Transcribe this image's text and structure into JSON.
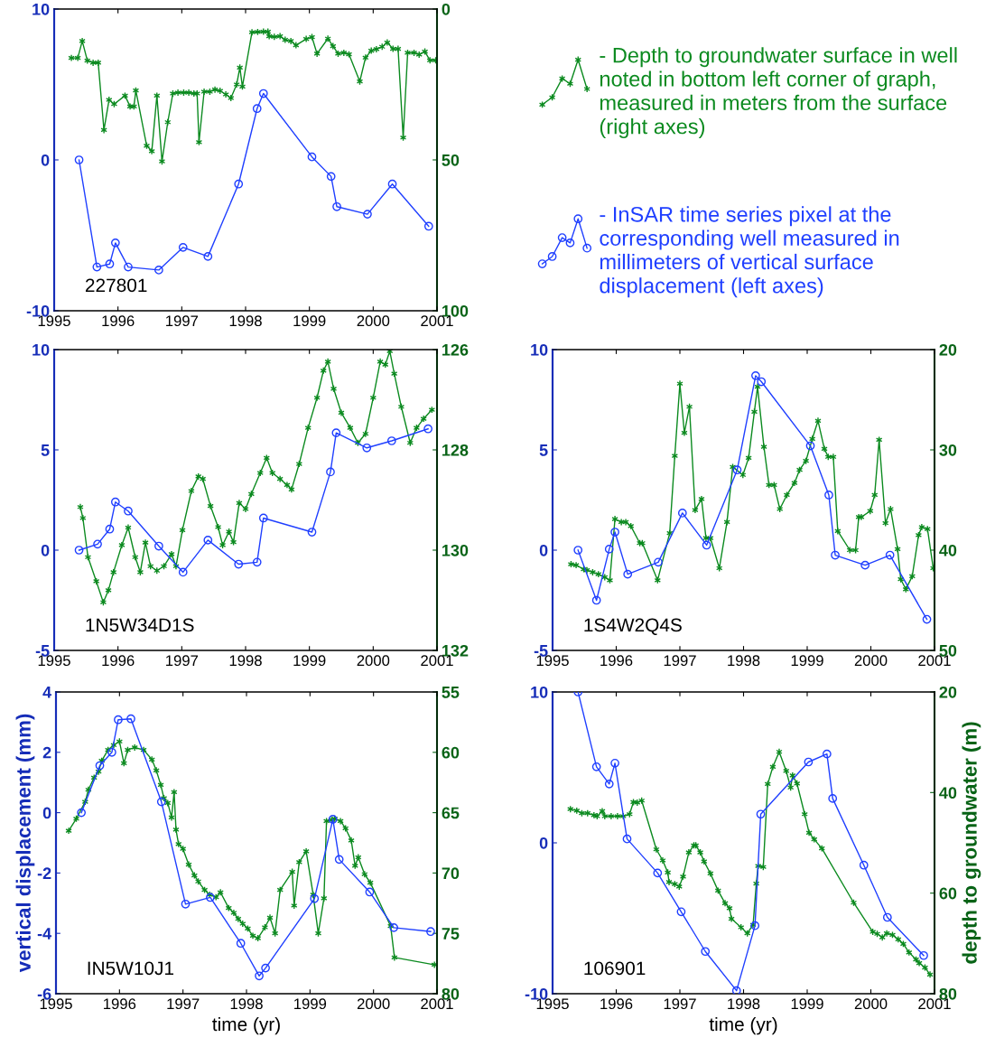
{
  "chart_data": [
    {
      "type": "line",
      "annotations": [
        "227801"
      ],
      "legend": "right",
      "xlim": [
        1995,
        2001
      ],
      "xticks": [
        1995,
        1996,
        1997,
        1998,
        1999,
        2000,
        2001
      ],
      "ylim": [
        -10,
        10
      ],
      "yticks": [
        -10,
        0,
        10
      ],
      "y2lim": [
        100,
        0
      ],
      "y2ticks": [
        0,
        50,
        100
      ],
      "grid": false,
      "series": [
        {
          "name": "- Depth to groundwater surface in well noted in bottom left corner of graph, measured in meters from the surface (right axes)",
          "color": "#0b8a1f",
          "axis": "y2",
          "marker": "cross",
          "x": [
            1995.27,
            1995.37,
            1995.44,
            1995.52,
            1995.61,
            1995.69,
            1995.78,
            1995.86,
            1995.94,
            1996.11,
            1996.19,
            1996.25,
            1996.28,
            1996.45,
            1996.53,
            1996.61,
            1996.69,
            1996.78,
            1996.86,
            1996.94,
            1997.03,
            1997.11,
            1997.19,
            1997.24,
            1997.27,
            1997.35,
            1997.44,
            1997.52,
            1997.6,
            1997.69,
            1997.77,
            1997.86,
            1997.91,
            1997.95,
            1998.1,
            1998.19,
            1998.28,
            1998.35,
            1998.37,
            1998.45,
            1998.54,
            1998.62,
            1998.71,
            1998.79,
            1998.95,
            1999.04,
            1999.12,
            1999.29,
            1999.37,
            1999.45,
            1999.54,
            1999.62,
            1999.79,
            1999.88,
            1999.97,
            2000.05,
            2000.14,
            2000.22,
            2000.31,
            2000.39,
            2000.47,
            2000.54,
            2000.64,
            2000.72,
            2000.81,
            2000.89,
            2000.98
          ],
          "values": [
            16.2,
            16.2,
            10.6,
            17.1,
            17.8,
            17.8,
            40.1,
            30.1,
            31.5,
            28.7,
            32.3,
            32.3,
            27,
            45.3,
            47.1,
            28.7,
            50.5,
            37.5,
            28,
            27.7,
            27.7,
            27.7,
            28,
            28,
            44.1,
            27.4,
            27.4,
            26.7,
            27.1,
            28.3,
            29.5,
            25,
            19.4,
            25.7,
            7.7,
            7.6,
            7.5,
            7.5,
            9,
            9.2,
            9,
            10.2,
            10.6,
            12,
            9.9,
            9.3,
            14.8,
            9.8,
            12.3,
            14.8,
            14.5,
            15,
            24,
            16.1,
            13.8,
            13.3,
            12.5,
            11.1,
            13.2,
            13.2,
            42.6,
            14.5,
            14.5,
            15.1,
            14.1,
            17,
            17
          ]
        },
        {
          "name": "- InSAR time series pixel at the corresponding well measured in millimeters of vertical surface displacement (left axes)",
          "color": "#1f3fff",
          "axis": "y",
          "marker": "circle",
          "x": [
            1995.39,
            1995.67,
            1995.87,
            1995.96,
            1996.16,
            1996.64,
            1997.02,
            1997.41,
            1997.89,
            1998.18,
            1998.28,
            1999.04,
            1999.34,
            1999.43,
            1999.91,
            2000.3,
            2000.87
          ],
          "values": [
            0,
            -7.1,
            -6.9,
            -5.5,
            -7.1,
            -7.3,
            -5.8,
            -6.4,
            -1.6,
            3.4,
            4.4,
            0.2,
            -1.1,
            -3.1,
            -3.6,
            -1.6,
            -4.4
          ]
        }
      ]
    },
    {
      "type": "line",
      "annotations": [
        "1N5W34D1S"
      ],
      "xlim": [
        1995,
        2001
      ],
      "xticks": [
        1995,
        1996,
        1997,
        1998,
        1999,
        2000,
        2001
      ],
      "ylim": [
        -5,
        10
      ],
      "yticks": [
        -5,
        0,
        5,
        10
      ],
      "y2lim": [
        132,
        126
      ],
      "y2ticks": [
        126,
        128,
        130,
        132
      ],
      "grid": false,
      "series": [
        {
          "color": "#0b8a1f",
          "axis": "y2",
          "marker": "cross",
          "x": [
            1995.41,
            1995.45,
            1995.53,
            1995.66,
            1995.77,
            1995.85,
            1995.93,
            1996.06,
            1996.16,
            1996.27,
            1996.35,
            1996.43,
            1996.51,
            1996.61,
            1996.72,
            1996.84,
            1996.91,
            1997.01,
            1997.15,
            1997.26,
            1997.33,
            1997.45,
            1997.57,
            1997.64,
            1997.74,
            1997.81,
            1997.9,
            1998.0,
            1998.09,
            1998.23,
            1998.33,
            1998.42,
            1998.54,
            1998.65,
            1998.72,
            1998.84,
            1998.98,
            1999.12,
            1999.22,
            1999.29,
            1999.38,
            1999.5,
            1999.64,
            1999.76,
            1999.88,
            2000.0,
            2000.11,
            2000.19,
            2000.26,
            2000.33,
            2000.44,
            2000.58,
            2000.68,
            2000.79,
            2000.92
          ],
          "values": [
            129.14,
            129.36,
            130.14,
            130.62,
            131.04,
            130.8,
            130.44,
            129.9,
            129.55,
            130.14,
            130.44,
            129.85,
            130.32,
            130.41,
            130.32,
            130.08,
            130.32,
            129.6,
            128.82,
            128.53,
            128.58,
            129.12,
            129.54,
            129.9,
            129.63,
            129.84,
            129.06,
            129.18,
            128.88,
            128.46,
            128.16,
            128.46,
            128.58,
            128.7,
            128.79,
            128.28,
            127.56,
            126.96,
            126.42,
            126.24,
            126.78,
            127.26,
            127.56,
            127.86,
            127.68,
            126.96,
            126.24,
            126.3,
            126.03,
            126.48,
            127.14,
            127.86,
            127.56,
            127.38,
            127.2
          ]
        },
        {
          "color": "#1f3fff",
          "axis": "y",
          "marker": "circle",
          "x": [
            1995.39,
            1995.68,
            1995.87,
            1995.96,
            1996.16,
            1996.64,
            1997.02,
            1997.41,
            1997.89,
            1998.18,
            1998.28,
            1999.04,
            1999.33,
            1999.42,
            1999.9,
            2000.29,
            2000.86
          ],
          "values": [
            0,
            0.3,
            1.05,
            2.4,
            1.95,
            0.2,
            -1.1,
            0.5,
            -0.7,
            -0.6,
            1.6,
            0.9,
            3.9,
            5.85,
            5.1,
            5.45,
            6.05
          ]
        }
      ]
    },
    {
      "type": "line",
      "annotations": [
        "1S4W2Q4S"
      ],
      "xlim": [
        1995,
        2001
      ],
      "xticks": [
        1995,
        1996,
        1997,
        1998,
        1999,
        2000,
        2001
      ],
      "ylim": [
        -5,
        10
      ],
      "yticks": [
        -5,
        0,
        5,
        10
      ],
      "y2lim": [
        50,
        20
      ],
      "y2ticks": [
        20,
        30,
        40,
        50
      ],
      "grid": false,
      "series": [
        {
          "color": "#0b8a1f",
          "axis": "y2",
          "marker": "cross",
          "x": [
            1995.29,
            1995.37,
            1995.49,
            1995.54,
            1995.63,
            1995.72,
            1995.82,
            1995.9,
            1995.98,
            1996.08,
            1996.15,
            1996.23,
            1996.37,
            1996.41,
            1996.65,
            1996.84,
            1996.92,
            1997.0,
            1997.07,
            1997.15,
            1997.24,
            1997.34,
            1997.41,
            1997.48,
            1997.62,
            1997.74,
            1997.83,
            1997.99,
            1998.08,
            1998.17,
            1998.22,
            1998.32,
            1998.4,
            1998.48,
            1998.57,
            1998.68,
            1998.8,
            1998.88,
            1998.98,
            1999.08,
            1999.17,
            1999.27,
            1999.33,
            1999.41,
            1999.48,
            1999.67,
            1999.76,
            1999.81,
            1999.85,
            1999.99,
            2000.06,
            2000.13,
            2000.23,
            2000.31,
            2000.42,
            2000.47,
            2000.55,
            2000.65,
            2000.75,
            2000.8,
            2000.89,
            2000.98
          ],
          "values": [
            41.4,
            41.5,
            41.9,
            42.0,
            42.2,
            42.4,
            42.7,
            43.0,
            36.9,
            37.2,
            37.2,
            37.6,
            39.3,
            39.3,
            43.0,
            38.3,
            30.6,
            23.4,
            28.3,
            25.7,
            36.0,
            34.9,
            38.8,
            38.8,
            41.8,
            37.2,
            31.7,
            32.5,
            30.8,
            26.2,
            23.7,
            29.7,
            33.5,
            33.5,
            35.9,
            34.5,
            33.3,
            32.0,
            31.1,
            28.9,
            27.1,
            29.9,
            30.7,
            30.7,
            38.1,
            40.0,
            40.0,
            36.7,
            36.7,
            36.1,
            34.5,
            29.0,
            37.3,
            35.9,
            39.9,
            42.9,
            43.9,
            42.6,
            38.5,
            37.7,
            37.9,
            41.8
          ]
        },
        {
          "color": "#1f3fff",
          "axis": "y",
          "marker": "circle",
          "x": [
            1995.4,
            1995.69,
            1995.89,
            1995.98,
            1996.18,
            1996.66,
            1997.04,
            1997.42,
            1997.9,
            1998.19,
            1998.28,
            1999.05,
            1999.34,
            1999.44,
            1999.91,
            2000.3,
            2000.88
          ],
          "values": [
            0,
            -2.5,
            0.05,
            0.9,
            -1.2,
            -0.6,
            1.85,
            0.25,
            4.0,
            8.7,
            8.4,
            5.2,
            2.75,
            -0.25,
            -0.75,
            -0.25,
            -3.45
          ]
        }
      ]
    },
    {
      "type": "line",
      "annotations": [
        "IN5W10J1"
      ],
      "xlabel": "time (yr)",
      "ylabel": "vertical displacement (mm)",
      "xlim": [
        1995,
        2001
      ],
      "xticks": [
        1995,
        1996,
        1997,
        1998,
        1999,
        2000,
        2001
      ],
      "ylim": [
        -6,
        4
      ],
      "yticks": [
        -6,
        -4,
        -2,
        0,
        2,
        4
      ],
      "y2lim": [
        80,
        55
      ],
      "y2ticks": [
        55,
        60,
        65,
        70,
        75,
        80
      ],
      "grid": false,
      "series": [
        {
          "color": "#0b8a1f",
          "axis": "y2",
          "marker": "cross",
          "x": [
            1995.2,
            1995.32,
            1995.46,
            1995.51,
            1995.6,
            1995.67,
            1995.72,
            1995.82,
            1995.91,
            1996.0,
            1996.07,
            1996.13,
            1996.24,
            1996.38,
            1996.51,
            1996.58,
            1996.65,
            1996.7,
            1996.76,
            1996.82,
            1996.86,
            1996.89,
            1996.93,
            1997.0,
            1997.09,
            1997.18,
            1997.24,
            1997.34,
            1997.42,
            1997.52,
            1997.59,
            1997.72,
            1997.8,
            1997.87,
            1997.94,
            1998.02,
            1998.1,
            1998.18,
            1998.29,
            1998.37,
            1998.45,
            1998.53,
            1998.72,
            1998.75,
            1998.83,
            1998.94,
            1999.05,
            1999.13,
            1999.22,
            1999.26,
            1999.34,
            1999.39,
            1999.48,
            1999.56,
            1999.65,
            1999.71,
            1999.76,
            1999.86,
            1999.95,
            2000.27,
            2000.33,
            2000.96
          ],
          "values": [
            66.5,
            65.5,
            64.1,
            63.1,
            62.1,
            61.6,
            60.7,
            59.8,
            59.4,
            59.1,
            60.9,
            59.8,
            59.6,
            59.8,
            60.6,
            61.5,
            62.7,
            63.8,
            64.2,
            65.4,
            63.3,
            66.4,
            67.6,
            68.0,
            69.3,
            70.2,
            70.7,
            71.4,
            71.8,
            72.0,
            71.6,
            72.9,
            73.3,
            73.8,
            74.2,
            74.6,
            75.2,
            75.4,
            74.5,
            73.7,
            75.0,
            71.4,
            69.9,
            72.7,
            69.1,
            68.2,
            71.8,
            75.0,
            72.1,
            65.7,
            65.6,
            65.5,
            65.7,
            66.3,
            67.3,
            69.4,
            68.7,
            70.1,
            70.8,
            74.4,
            77.0,
            77.6
          ]
        },
        {
          "color": "#1f3fff",
          "axis": "y",
          "marker": "circle",
          "x": [
            1995.4,
            1995.69,
            1995.88,
            1995.98,
            1996.18,
            1996.66,
            1997.04,
            1997.43,
            1997.91,
            1998.2,
            1998.3,
            1999.07,
            1999.36,
            1999.46,
            1999.94,
            2000.32,
            2000.9
          ],
          "values": [
            0,
            1.56,
            2.0,
            3.08,
            3.11,
            0.36,
            -3.03,
            -2.81,
            -4.33,
            -5.41,
            -5.15,
            -2.85,
            -0.22,
            -1.55,
            -2.63,
            -3.81,
            -3.94
          ]
        }
      ]
    },
    {
      "type": "line",
      "annotations": [
        "106901"
      ],
      "xlabel": "time (yr)",
      "y2label": "depth to groundwater (m)",
      "xlim": [
        1995,
        2001
      ],
      "xticks": [
        1995,
        1996,
        1997,
        1998,
        1999,
        2000,
        2001
      ],
      "ylim": [
        -10,
        10
      ],
      "yticks": [
        -10,
        0,
        10
      ],
      "y2lim": [
        80,
        20
      ],
      "y2ticks": [
        20,
        40,
        60,
        80
      ],
      "grid": false,
      "series": [
        {
          "color": "#0b8a1f",
          "axis": "y2",
          "marker": "cross",
          "x": [
            1995.28,
            1995.38,
            1995.46,
            1995.55,
            1995.65,
            1995.7,
            1995.78,
            1995.82,
            1995.92,
            1996.02,
            1996.11,
            1996.21,
            1996.27,
            1996.33,
            1996.4,
            1996.63,
            1996.73,
            1996.81,
            1996.83,
            1996.92,
            1996.99,
            1997.05,
            1997.14,
            1997.22,
            1997.25,
            1997.32,
            1997.38,
            1997.48,
            1997.6,
            1997.71,
            1997.78,
            1997.81,
            1997.96,
            1998.06,
            1998.15,
            1998.2,
            1998.23,
            1998.31,
            1998.38,
            1998.46,
            1998.56,
            1998.67,
            1998.74,
            1998.77,
            1998.84,
            1998.96,
            1999.03,
            1999.11,
            1999.23,
            1999.73,
            2000.03,
            2000.1,
            2000.18,
            2000.25,
            2000.34,
            2000.43,
            2000.51,
            2000.6,
            2000.71,
            2000.76,
            2000.85,
            2000.93
          ],
          "values": [
            43.3,
            43.6,
            44.1,
            44.1,
            44.5,
            44.7,
            43.7,
            44.7,
            44.7,
            44.7,
            44.7,
            44.3,
            41.9,
            42.0,
            41.6,
            51.3,
            53.5,
            55.9,
            57.8,
            58.2,
            58.7,
            56.7,
            51.9,
            50.5,
            50.5,
            51.9,
            53.7,
            56.1,
            59.5,
            62.0,
            63.0,
            65.1,
            66.8,
            68.0,
            66.3,
            58.1,
            54.6,
            54.8,
            38.3,
            34.9,
            31.9,
            35.7,
            39.0,
            36.6,
            38.2,
            44.3,
            48.0,
            49.3,
            51.1,
            61.9,
            67.7,
            68.1,
            68.8,
            68.0,
            68.3,
            69.2,
            70.1,
            71.8,
            73.2,
            73.9,
            74.8,
            76.2
          ]
        },
        {
          "color": "#1f3fff",
          "axis": "y",
          "marker": "circle",
          "x": [
            1995.4,
            1995.69,
            1995.89,
            1995.98,
            1996.17,
            1996.65,
            1997.02,
            1997.4,
            1997.89,
            1998.18,
            1998.27,
            1999.02,
            1999.31,
            1999.4,
            1999.89,
            2000.26,
            2000.83
          ],
          "values": [
            10.0,
            5.04,
            3.9,
            5.28,
            0.26,
            -2.0,
            -4.57,
            -7.2,
            -9.8,
            -5.49,
            1.9,
            5.36,
            5.89,
            2.94,
            -1.48,
            -4.94,
            -7.47
          ]
        }
      ]
    }
  ]
}
